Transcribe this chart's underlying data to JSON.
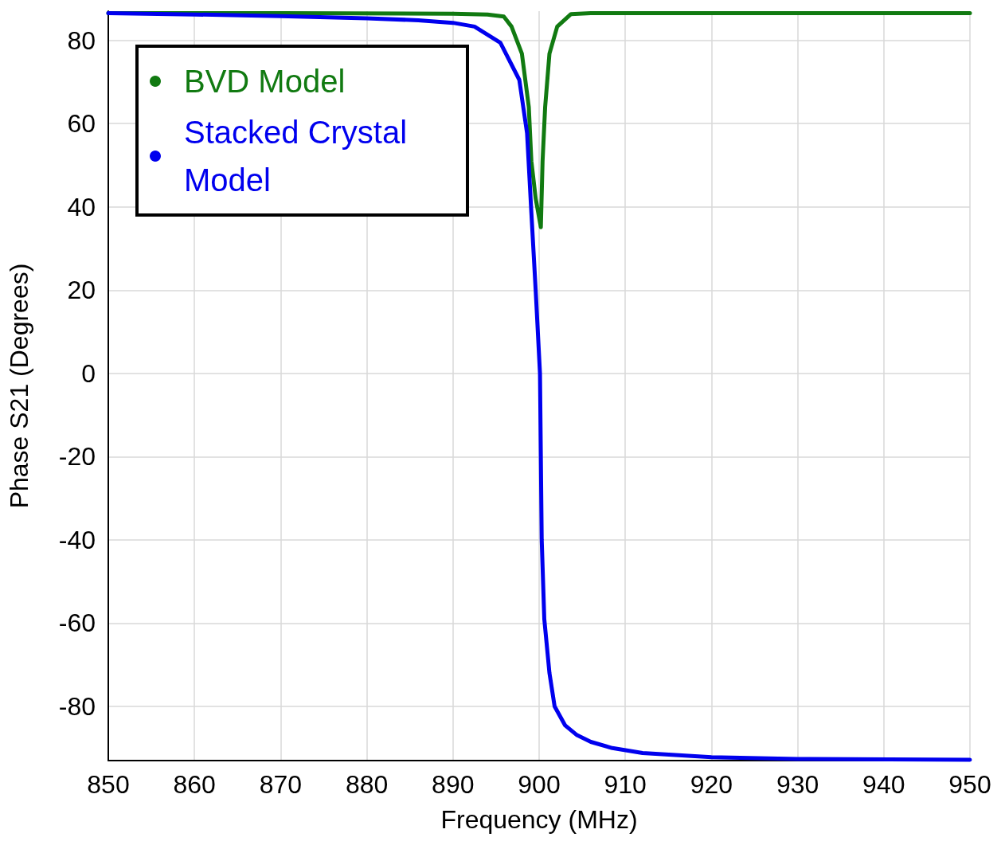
{
  "chart_data": {
    "type": "line",
    "xlabel": "Frequency (MHz)",
    "ylabel": "Phase S21 (Degrees)",
    "xlim": [
      850,
      950
    ],
    "xticks": [
      850,
      860,
      870,
      880,
      890,
      900,
      910,
      920,
      930,
      940,
      950
    ],
    "ylim": [
      -93,
      87
    ],
    "yticks": [
      -80,
      -60,
      -40,
      -20,
      0,
      20,
      40,
      60,
      80
    ],
    "grid": true,
    "legend": "top left",
    "marker": "none",
    "line_style": "solid",
    "series": [
      {
        "name": "BVD Model",
        "color": "#117a11",
        "x": [
          850,
          870,
          890,
          894,
          895.9,
          896.8,
          898.0,
          898.8,
          899.1,
          899.6,
          900.2,
          900.4,
          900.7,
          901.2,
          902.1,
          903.7,
          906,
          920,
          950
        ],
        "values": [
          86.5,
          86.5,
          86.4,
          86.2,
          85.7,
          83.3,
          76.8,
          64,
          51,
          42,
          35.1,
          51,
          64,
          76.8,
          83.3,
          86.3,
          86.5,
          86.5,
          86.5
        ]
      },
      {
        "name": "Stacked Crystal Model",
        "color": "#0000ee",
        "x": [
          850,
          860,
          870,
          880,
          886,
          890,
          892.5,
          895.5,
          897.7,
          898.6,
          899.1,
          899.6,
          900.1,
          900.3,
          900.6,
          901.2,
          901.8,
          903,
          904.4,
          906,
          908.5,
          912,
          920,
          930,
          950
        ],
        "values": [
          86.5,
          86.2,
          85.8,
          85.3,
          84.8,
          84.2,
          83.3,
          79.4,
          70.5,
          57.7,
          38.6,
          20,
          0,
          -40,
          -59,
          -72,
          -80,
          -84.5,
          -86.9,
          -88.5,
          -90,
          -91.2,
          -92.2,
          -92.6,
          -92.8
        ]
      }
    ]
  }
}
